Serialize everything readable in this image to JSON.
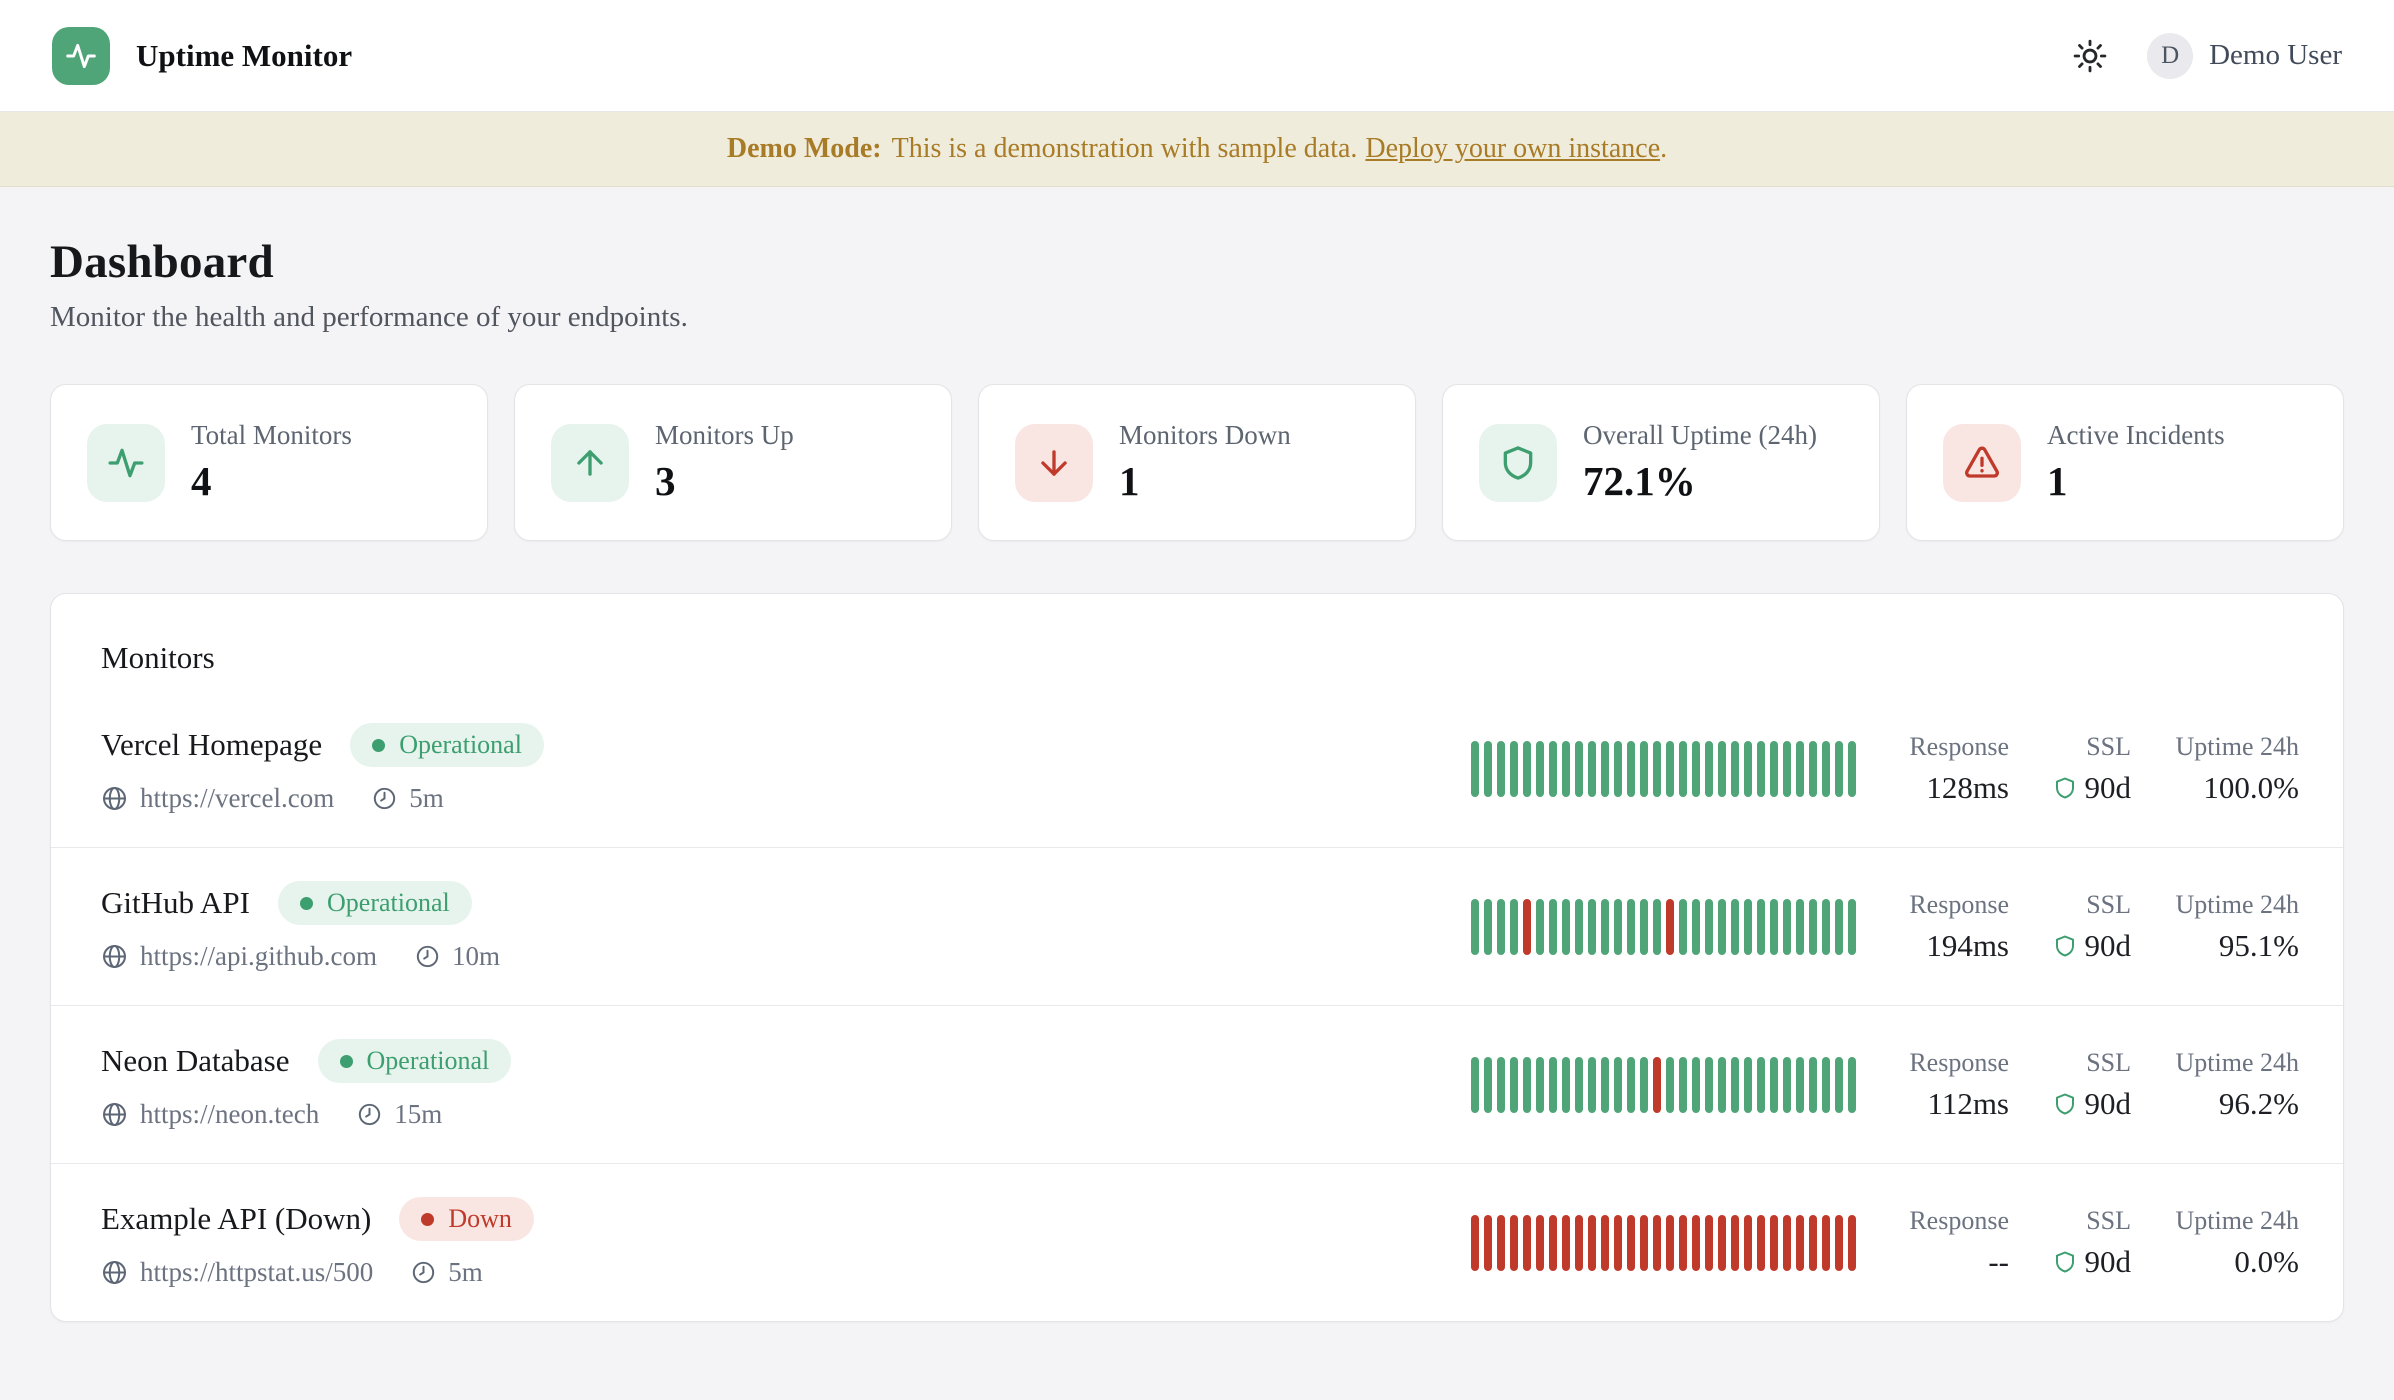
{
  "colors": {
    "page_bg": "#f4f4f6",
    "banner_bg": "#f0ecdc",
    "amber": "#a87b26",
    "green": "#3d9e6f",
    "green_fill": "#4fa578",
    "green_bg": "#e7f4ed",
    "red": "#c03a2b",
    "red_bg": "#f9e6e2"
  },
  "header": {
    "app_title": "Uptime Monitor",
    "user_initial": "D",
    "user_name": "Demo User"
  },
  "banner": {
    "bold": "Demo Mode:",
    "text": "This is a demonstration with sample data.",
    "link_label": "Deploy your own instance",
    "suffix": "."
  },
  "page": {
    "title": "Dashboard",
    "subtitle": "Monitor the health and performance of your endpoints."
  },
  "stats": [
    {
      "label": "Total Monitors",
      "value": "4",
      "icon": "activity-icon",
      "tone": "green"
    },
    {
      "label": "Monitors Up",
      "value": "3",
      "icon": "arrow-up-icon",
      "tone": "green"
    },
    {
      "label": "Monitors Down",
      "value": "1",
      "icon": "arrow-down-icon",
      "tone": "red"
    },
    {
      "label": "Overall Uptime (24h)",
      "value": "72.1%",
      "icon": "shield-icon",
      "tone": "green"
    },
    {
      "label": "Active Incidents",
      "value": "1",
      "icon": "alert-triangle-icon",
      "tone": "red"
    }
  ],
  "monitors_panel": {
    "title": "Monitors",
    "columns": {
      "response": "Response",
      "ssl": "SSL",
      "uptime": "Uptime 24h"
    },
    "monitors": [
      {
        "name": "Vercel Homepage",
        "status": "Operational",
        "status_tone": "up",
        "url": "https://vercel.com",
        "interval": "5m",
        "response": "128ms",
        "ssl": "90d",
        "uptime": "100.0%",
        "history": [
          1,
          1,
          1,
          1,
          1,
          1,
          1,
          1,
          1,
          1,
          1,
          1,
          1,
          1,
          1,
          1,
          1,
          1,
          1,
          1,
          1,
          1,
          1,
          1,
          1,
          1,
          1,
          1,
          1,
          1
        ]
      },
      {
        "name": "GitHub API",
        "status": "Operational",
        "status_tone": "up",
        "url": "https://api.github.com",
        "interval": "10m",
        "response": "194ms",
        "ssl": "90d",
        "uptime": "95.1%",
        "history": [
          1,
          1,
          1,
          1,
          0,
          1,
          1,
          1,
          1,
          1,
          1,
          1,
          1,
          1,
          1,
          0,
          1,
          1,
          1,
          1,
          1,
          1,
          1,
          1,
          1,
          1,
          1,
          1,
          1,
          1
        ]
      },
      {
        "name": "Neon Database",
        "status": "Operational",
        "status_tone": "up",
        "url": "https://neon.tech",
        "interval": "15m",
        "response": "112ms",
        "ssl": "90d",
        "uptime": "96.2%",
        "history": [
          1,
          1,
          1,
          1,
          1,
          1,
          1,
          1,
          1,
          1,
          1,
          1,
          1,
          1,
          0,
          1,
          1,
          1,
          1,
          1,
          1,
          1,
          1,
          1,
          1,
          1,
          1,
          1,
          1,
          1
        ]
      },
      {
        "name": "Example API (Down)",
        "status": "Down",
        "status_tone": "down",
        "url": "https://httpstat.us/500",
        "interval": "5m",
        "response": "--",
        "ssl": "90d",
        "uptime": "0.0%",
        "history": [
          0,
          0,
          0,
          0,
          0,
          0,
          0,
          0,
          0,
          0,
          0,
          0,
          0,
          0,
          0,
          0,
          0,
          0,
          0,
          0,
          0,
          0,
          0,
          0,
          0,
          0,
          0,
          0,
          0,
          0
        ]
      }
    ]
  }
}
